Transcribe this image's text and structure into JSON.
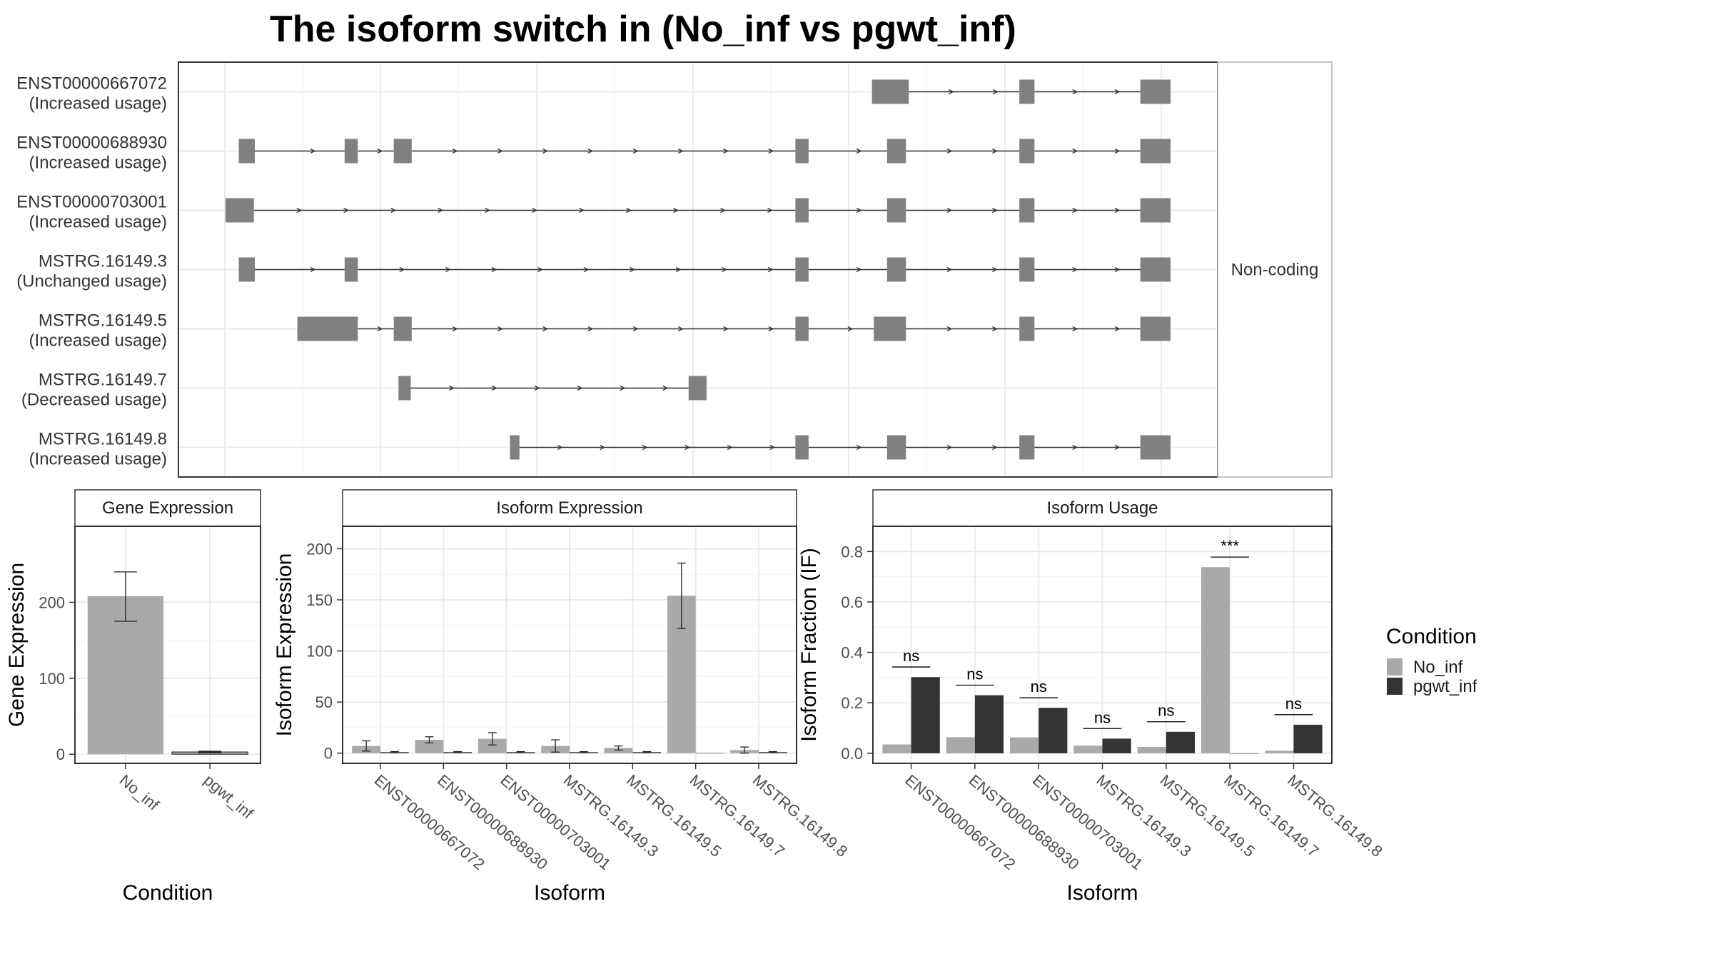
{
  "title": "The isoform switch in  (No_inf vs pgwt_inf)",
  "colors": {
    "No_inf": "#a9a9a9",
    "pgwt_inf": "#333333",
    "exon": "#808080",
    "grid": "#ebebeb",
    "panel_border": "#333333"
  },
  "structure_panel": {
    "strip_label": "Non-coding",
    "isoforms": [
      {
        "name": "ENST00000667072",
        "usage": "(Increased usage)",
        "exons": [
          [
            0.684,
            0.723
          ],
          [
            0.84,
            0.856
          ],
          [
            0.968,
            1.0
          ]
        ]
      },
      {
        "name": "ENST00000688930",
        "usage": "(Increased usage)",
        "exons": [
          [
            0.014,
            0.031
          ],
          [
            0.126,
            0.14
          ],
          [
            0.178,
            0.197
          ],
          [
            0.603,
            0.617
          ],
          [
            0.7,
            0.72
          ],
          [
            0.84,
            0.856
          ],
          [
            0.968,
            1.0
          ]
        ]
      },
      {
        "name": "ENST00000703001",
        "usage": "(Increased usage)",
        "exons": [
          [
            0.0,
            0.03
          ],
          [
            0.603,
            0.617
          ],
          [
            0.7,
            0.72
          ],
          [
            0.84,
            0.856
          ],
          [
            0.968,
            1.0
          ]
        ]
      },
      {
        "name": "MSTRG.16149.3",
        "usage": "(Unchanged usage)",
        "exons": [
          [
            0.014,
            0.031
          ],
          [
            0.126,
            0.14
          ],
          [
            0.603,
            0.617
          ],
          [
            0.7,
            0.72
          ],
          [
            0.84,
            0.856
          ],
          [
            0.968,
            1.0
          ]
        ]
      },
      {
        "name": "MSTRG.16149.5",
        "usage": "(Increased usage)",
        "exons": [
          [
            0.076,
            0.14
          ],
          [
            0.178,
            0.197
          ],
          [
            0.603,
            0.617
          ],
          [
            0.686,
            0.72
          ],
          [
            0.84,
            0.856
          ],
          [
            0.968,
            1.0
          ]
        ]
      },
      {
        "name": "MSTRG.16149.7",
        "usage": "(Decreased usage)",
        "exons": [
          [
            0.183,
            0.196
          ],
          [
            0.49,
            0.509
          ]
        ]
      },
      {
        "name": "MSTRG.16149.8",
        "usage": "(Increased usage)",
        "exons": [
          [
            0.301,
            0.311
          ],
          [
            0.603,
            0.617
          ],
          [
            0.7,
            0.72
          ],
          [
            0.84,
            0.856
          ],
          [
            0.968,
            1.0
          ]
        ]
      }
    ]
  },
  "chart_data": [
    {
      "type": "bar",
      "title": "Gene Expression",
      "xlabel": "Condition",
      "ylabel": "Gene Expression",
      "categories": [
        "No_inf",
        "pgwt_inf"
      ],
      "values": [
        208,
        3
      ],
      "errors": [
        [
          175,
          240
        ],
        [
          2,
          4
        ]
      ],
      "ylim": [
        -12,
        300
      ],
      "yticks": [
        0,
        100,
        200
      ],
      "grid": true
    },
    {
      "type": "bar",
      "title": "Isoform Expression",
      "xlabel": "Isoform",
      "ylabel": "Isoform Expression",
      "categories": [
        "ENST00000667072",
        "ENST00000688930",
        "ENST00000703001",
        "MSTRG.16149.3",
        "MSTRG.16149.5",
        "MSTRG.16149.7",
        "MSTRG.16149.8"
      ],
      "series": [
        {
          "name": "No_inf",
          "values": [
            7,
            13,
            14,
            7,
            5,
            154,
            3
          ],
          "errors": [
            [
              2,
              12
            ],
            [
              10,
              16
            ],
            [
              8,
              20
            ],
            [
              1,
              13
            ],
            [
              3,
              7
            ],
            [
              122,
              186
            ],
            [
              0,
              6
            ]
          ]
        },
        {
          "name": "pgwt_inf",
          "values": [
            1,
            1,
            1,
            1,
            1,
            0,
            1
          ],
          "errors": [
            [
              0.5,
              1.5
            ],
            [
              0.5,
              1.5
            ],
            [
              0.5,
              1.5
            ],
            [
              0.5,
              1.5
            ],
            [
              0.5,
              1.5
            ],
            null,
            [
              0.5,
              1.5
            ]
          ]
        }
      ],
      "ylim": [
        -10,
        222
      ],
      "yticks": [
        0,
        50,
        100,
        150,
        200
      ],
      "grid": true
    },
    {
      "type": "bar",
      "title": "Isoform Usage",
      "xlabel": "Isoform",
      "ylabel": "Isoform Fraction (IF)",
      "categories": [
        "ENST00000667072",
        "ENST00000688930",
        "ENST00000703001",
        "MSTRG.16149.3",
        "MSTRG.16149.5",
        "MSTRG.16149.7",
        "MSTRG.16149.8"
      ],
      "series": [
        {
          "name": "No_inf",
          "values": [
            0.035,
            0.064,
            0.063,
            0.03,
            0.025,
            0.738,
            0.01
          ]
        },
        {
          "name": "pgwt_inf",
          "values": [
            0.302,
            0.23,
            0.18,
            0.058,
            0.085,
            0.0,
            0.113
          ]
        }
      ],
      "significance": [
        "ns",
        "ns",
        "ns",
        "ns",
        "ns",
        "***",
        "ns"
      ],
      "ylim": [
        -0.04,
        0.9
      ],
      "yticks": [
        0.0,
        0.2,
        0.4,
        0.6,
        0.8
      ],
      "grid": true
    }
  ],
  "legend": {
    "title": "Condition",
    "items": [
      "No_inf",
      "pgwt_inf"
    ]
  }
}
